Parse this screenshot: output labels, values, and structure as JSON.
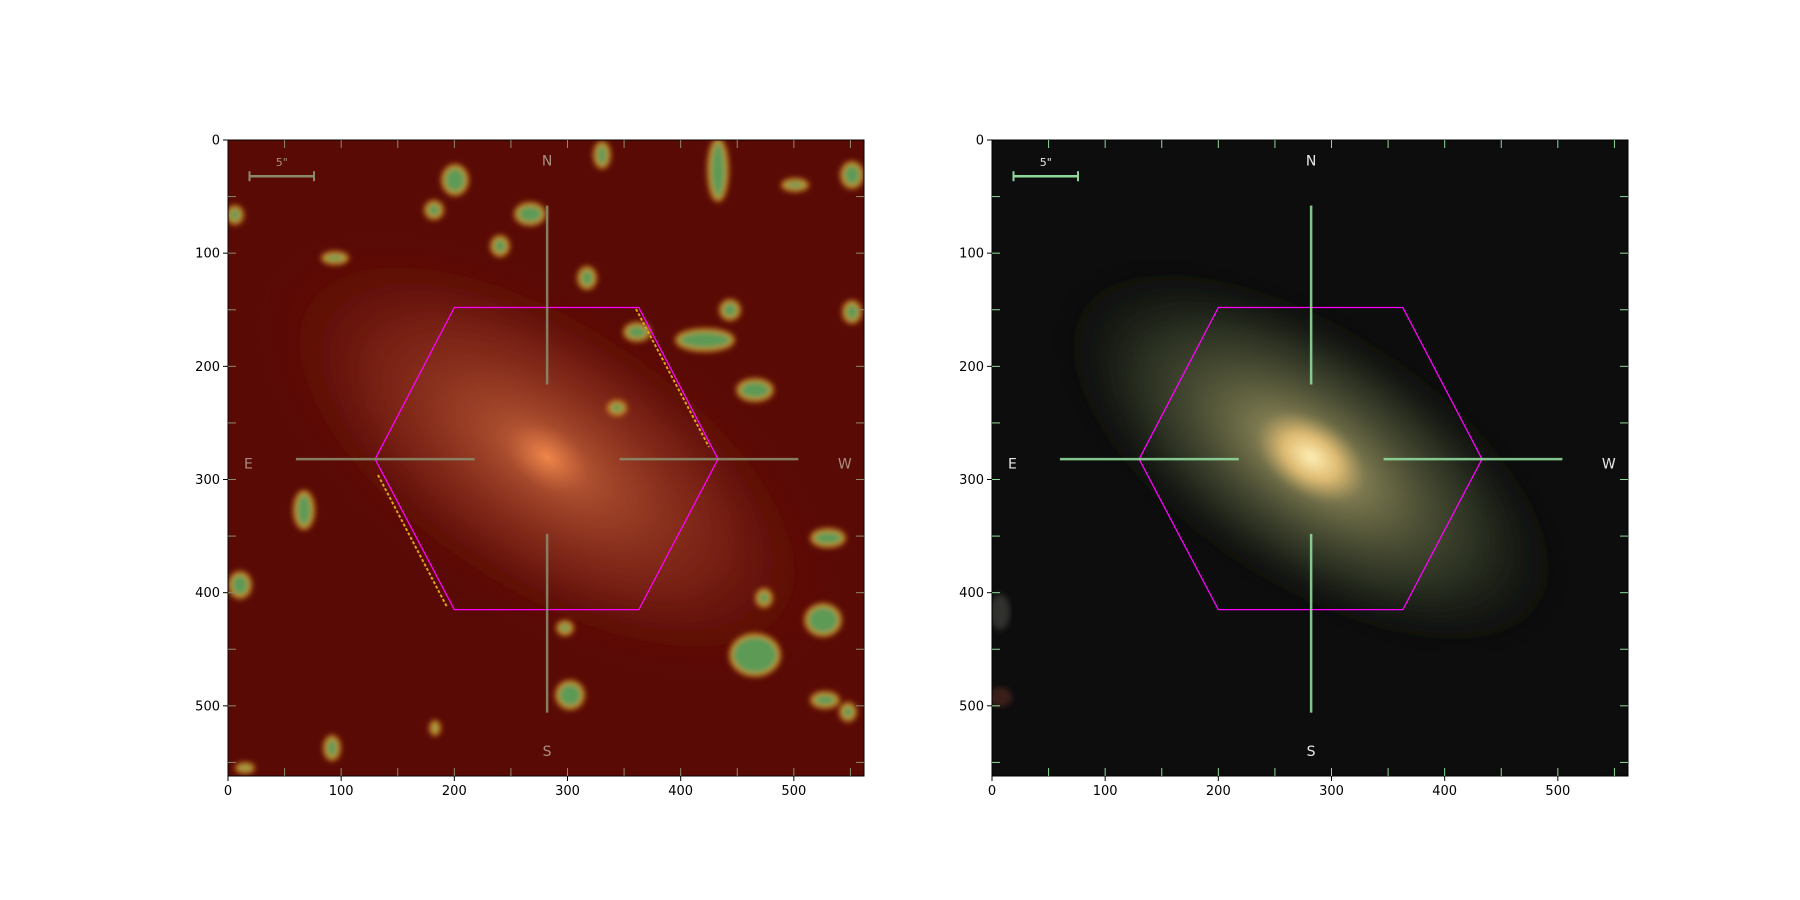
{
  "chart_data": [
    {
      "type": "image",
      "panel": "left",
      "colormap": "dark red to green/teal false-color",
      "xlim": [
        0,
        562
      ],
      "ylim": [
        562,
        0
      ],
      "x_ticks": [
        0,
        100,
        200,
        300,
        400,
        500
      ],
      "y_ticks": [
        0,
        100,
        200,
        300,
        400,
        500
      ],
      "compass": {
        "N": "N",
        "S": "S",
        "E": "E",
        "W": "W"
      },
      "scale_bar": {
        "label": "5\"",
        "from": 19,
        "to": 76,
        "y": 32
      },
      "crosshair": {
        "center": [
          282,
          282
        ],
        "color": "#8a8a6a"
      },
      "hexagon": {
        "color": "#ff00ff",
        "vertices": [
          [
            200,
            148
          ],
          [
            363,
            148
          ],
          [
            433,
            282
          ],
          [
            363,
            415
          ],
          [
            200,
            415
          ],
          [
            130,
            282
          ]
        ]
      },
      "colors": {
        "background": "#5a0a05",
        "blob": "#5c9a57",
        "blob_edge": "#e0a020",
        "glow": "#c8643a"
      }
    },
    {
      "type": "image",
      "panel": "right",
      "colormap": "true color (gri composite)",
      "xlim": [
        0,
        562
      ],
      "ylim": [
        562,
        0
      ],
      "x_ticks": [
        0,
        100,
        200,
        300,
        400,
        500
      ],
      "y_ticks": [
        0,
        100,
        200,
        300,
        400,
        500
      ],
      "compass": {
        "N": "N",
        "S": "S",
        "E": "E",
        "W": "W"
      },
      "scale_bar": {
        "label": "5\"",
        "from": 19,
        "to": 76,
        "y": 32
      },
      "crosshair": {
        "center": [
          282,
          282
        ],
        "color": "#8fd89a"
      },
      "hexagon": {
        "color": "#ff00ff",
        "vertices": [
          [
            200,
            148
          ],
          [
            363,
            148
          ],
          [
            433,
            282
          ],
          [
            363,
            415
          ],
          [
            200,
            415
          ],
          [
            130,
            282
          ]
        ]
      },
      "colors": {
        "background": "#0d0d0d",
        "galaxy_outer": "#5e6a48",
        "galaxy_core": "#f7d590"
      }
    }
  ]
}
